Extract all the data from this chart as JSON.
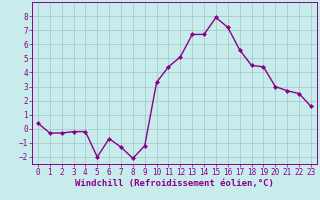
{
  "x": [
    0,
    1,
    2,
    3,
    4,
    5,
    6,
    7,
    8,
    9,
    10,
    11,
    12,
    13,
    14,
    15,
    16,
    17,
    18,
    19,
    20,
    21,
    22,
    23
  ],
  "y": [
    0.4,
    -0.3,
    -0.3,
    -0.2,
    -0.2,
    -2.0,
    -0.7,
    -1.3,
    -2.1,
    -1.2,
    3.3,
    4.4,
    5.1,
    6.7,
    6.7,
    7.9,
    7.2,
    5.6,
    4.5,
    4.4,
    3.0,
    2.7,
    2.5,
    1.6
  ],
  "line_color": "#8B008B",
  "marker": "D",
  "marker_size": 2,
  "linewidth": 1.0,
  "xlabel": "Windchill (Refroidissement éolien,°C)",
  "xlabel_color": "#8B008B",
  "xlim": [
    -0.5,
    23.5
  ],
  "ylim": [
    -2.5,
    9.0
  ],
  "yticks": [
    -2,
    -1,
    0,
    1,
    2,
    3,
    4,
    5,
    6,
    7,
    8
  ],
  "xticks": [
    0,
    1,
    2,
    3,
    4,
    5,
    6,
    7,
    8,
    9,
    10,
    11,
    12,
    13,
    14,
    15,
    16,
    17,
    18,
    19,
    20,
    21,
    22,
    23
  ],
  "grid_color": "#9EC4C4",
  "bg_color": "#C8ECEC",
  "tick_color": "#8B008B",
  "tick_fontsize": 5.5,
  "xlabel_fontsize": 6.5
}
